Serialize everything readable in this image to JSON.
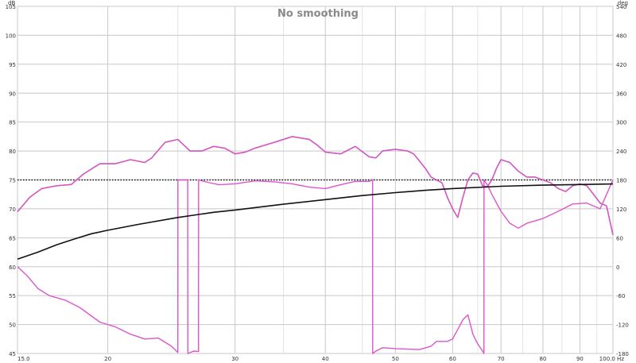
{
  "chart_data": {
    "type": "line",
    "title": "No smoothing",
    "left_unit": "dB",
    "right_unit": "deg",
    "x_scale": "log",
    "xlim": [
      15.0,
      100.0
    ],
    "ylim": [
      45,
      105
    ],
    "y2lim": [
      -180,
      540
    ],
    "grid": true,
    "legend": "none",
    "x_ticks": [
      15,
      20,
      30,
      40,
      50,
      60,
      70,
      80,
      90,
      100
    ],
    "x_tick_labels": [
      "15.0",
      "20",
      "30",
      "40",
      "50",
      "60",
      "70",
      "80",
      "90",
      "100.0 Hz"
    ],
    "y_ticks": [
      45,
      50,
      55,
      60,
      65,
      70,
      75,
      80,
      85,
      90,
      95,
      100,
      105
    ],
    "y_tick_labels": [
      "45",
      "50",
      "55",
      "60",
      "65",
      "70",
      "75",
      "80",
      "85",
      "90",
      "95",
      "100",
      "105"
    ],
    "y2_ticks": [
      -180,
      -120,
      -60,
      0,
      60,
      120,
      180,
      240,
      300,
      360,
      420,
      480,
      540
    ],
    "y2_tick_labels": [
      "-180",
      "-120",
      "-60",
      "0",
      "60",
      "120",
      "180",
      "240",
      "300",
      "360",
      "420",
      "480",
      "540"
    ],
    "series": [
      {
        "color": "#7a2c58",
        "points": [
          [
            15.0,
            69.5
          ],
          [
            15.6,
            72.0
          ],
          [
            16.2,
            73.5
          ],
          [
            17.0,
            74.0
          ],
          [
            17.8,
            74.2
          ],
          [
            18.5,
            76.0
          ],
          [
            19.5,
            77.8
          ],
          [
            20.5,
            77.8
          ],
          [
            21.5,
            78.5
          ],
          [
            22.5,
            78.0
          ],
          [
            23.0,
            78.8
          ],
          [
            24.0,
            81.5
          ],
          [
            25.0,
            82.0
          ],
          [
            26.0,
            80.0
          ],
          [
            27.0,
            80.0
          ],
          [
            28.0,
            80.8
          ],
          [
            29.0,
            80.5
          ],
          [
            30.0,
            79.5
          ],
          [
            31.0,
            79.8
          ],
          [
            32.0,
            80.5
          ],
          [
            34.0,
            81.5
          ],
          [
            36.0,
            82.5
          ],
          [
            38.0,
            82.0
          ],
          [
            39.0,
            81.0
          ],
          [
            40.0,
            79.8
          ],
          [
            42.0,
            79.5
          ],
          [
            44.0,
            80.8
          ],
          [
            46.0,
            79.0
          ],
          [
            47.0,
            78.8
          ],
          [
            48.0,
            80.0
          ],
          [
            50.0,
            80.3
          ],
          [
            52.0,
            80.0
          ],
          [
            53.0,
            79.5
          ],
          [
            55.0,
            77.0
          ],
          [
            56.0,
            75.5
          ],
          [
            58.0,
            74.5
          ],
          [
            59.0,
            72.0
          ],
          [
            60.0,
            70.0
          ],
          [
            61.0,
            68.5
          ],
          [
            62.0,
            72.0
          ],
          [
            63.0,
            75.0
          ],
          [
            64.0,
            76.2
          ],
          [
            65.0,
            76.0
          ],
          [
            66.0,
            74.0
          ],
          [
            67.0,
            73.8
          ],
          [
            68.0,
            75.0
          ],
          [
            69.0,
            77.0
          ],
          [
            70.0,
            78.5
          ],
          [
            72.0,
            78.0
          ],
          [
            74.0,
            76.5
          ],
          [
            76.0,
            75.5
          ],
          [
            78.0,
            75.5
          ],
          [
            80.0,
            75.0
          ],
          [
            82.0,
            74.5
          ],
          [
            84.0,
            73.5
          ],
          [
            86.0,
            73.0
          ],
          [
            88.0,
            74.0
          ],
          [
            90.0,
            74.3
          ],
          [
            92.0,
            74.0
          ],
          [
            94.0,
            72.5
          ],
          [
            96.0,
            71.0
          ],
          [
            98.0,
            70.5
          ],
          [
            100.0,
            65.5
          ]
        ]
      },
      {
        "color": "#dd55cc",
        "points": [
          [
            15.0,
            69.5
          ],
          [
            15.6,
            72.0
          ],
          [
            16.2,
            73.5
          ],
          [
            17.0,
            74.0
          ],
          [
            17.8,
            74.2
          ],
          [
            18.5,
            76.0
          ],
          [
            19.5,
            77.8
          ],
          [
            20.5,
            77.8
          ],
          [
            21.5,
            78.5
          ],
          [
            22.5,
            78.0
          ],
          [
            23.0,
            78.8
          ],
          [
            24.0,
            81.5
          ],
          [
            25.0,
            82.0
          ],
          [
            26.0,
            80.0
          ],
          [
            27.0,
            80.0
          ],
          [
            28.0,
            80.8
          ],
          [
            29.0,
            80.5
          ],
          [
            30.0,
            79.5
          ],
          [
            31.0,
            79.8
          ],
          [
            32.0,
            80.5
          ],
          [
            34.0,
            81.5
          ],
          [
            36.0,
            82.5
          ],
          [
            38.0,
            82.0
          ],
          [
            39.0,
            81.0
          ],
          [
            40.0,
            79.8
          ],
          [
            42.0,
            79.5
          ],
          [
            44.0,
            80.8
          ],
          [
            46.0,
            79.0
          ],
          [
            47.0,
            78.8
          ],
          [
            48.0,
            80.0
          ],
          [
            50.0,
            80.3
          ],
          [
            52.0,
            80.0
          ],
          [
            53.0,
            79.5
          ],
          [
            55.0,
            77.0
          ],
          [
            56.0,
            75.5
          ],
          [
            58.0,
            74.5
          ],
          [
            59.0,
            72.0
          ],
          [
            60.0,
            70.0
          ],
          [
            61.0,
            68.5
          ],
          [
            62.0,
            72.0
          ],
          [
            63.0,
            75.0
          ],
          [
            64.0,
            76.2
          ],
          [
            65.0,
            76.0
          ],
          [
            66.0,
            74.0
          ],
          [
            67.0,
            73.8
          ],
          [
            68.0,
            75.0
          ],
          [
            69.0,
            77.0
          ],
          [
            70.0,
            78.5
          ],
          [
            72.0,
            78.0
          ],
          [
            74.0,
            76.5
          ],
          [
            76.0,
            75.5
          ],
          [
            78.0,
            75.5
          ],
          [
            80.0,
            75.0
          ],
          [
            82.0,
            74.5
          ],
          [
            84.0,
            73.5
          ],
          [
            86.0,
            73.0
          ],
          [
            88.0,
            74.0
          ],
          [
            90.0,
            74.3
          ],
          [
            92.0,
            74.0
          ],
          [
            94.0,
            72.5
          ],
          [
            96.0,
            71.0
          ],
          [
            98.0,
            70.5
          ],
          [
            100.0,
            65.5
          ]
        ]
      },
      {
        "color": "#dd55cc",
        "axis": "right",
        "points": [
          [
            15.0,
            0
          ],
          [
            15.5,
            -20
          ],
          [
            16.0,
            -45
          ],
          [
            16.6,
            -60
          ],
          [
            17.5,
            -70
          ],
          [
            18.3,
            -85
          ],
          [
            19.5,
            -115
          ],
          [
            20.5,
            -125
          ],
          [
            21.5,
            -140
          ],
          [
            22.5,
            -150
          ],
          [
            23.5,
            -148
          ],
          [
            24.5,
            -165
          ],
          [
            25.0,
            -178
          ],
          [
            25.01,
            180
          ],
          [
            25.8,
            180
          ],
          [
            25.81,
            -180
          ],
          [
            26.3,
            -175
          ],
          [
            26.7,
            -176
          ],
          [
            26.71,
            180
          ],
          [
            27.5,
            175
          ],
          [
            28.5,
            170
          ],
          [
            30.0,
            172
          ],
          [
            32.0,
            178
          ],
          [
            34.0,
            176
          ],
          [
            36.0,
            172
          ],
          [
            38.0,
            165
          ],
          [
            40.0,
            162
          ],
          [
            42.0,
            170
          ],
          [
            44.0,
            177
          ],
          [
            46.0,
            177
          ],
          [
            46.5,
            180
          ],
          [
            46.51,
            -180
          ],
          [
            47.0,
            -175
          ],
          [
            48.0,
            -168
          ],
          [
            50.0,
            -170
          ],
          [
            54.0,
            -172
          ],
          [
            56.0,
            -165
          ],
          [
            57.0,
            -155
          ],
          [
            59.0,
            -155
          ],
          [
            60.0,
            -150
          ],
          [
            61.0,
            -130
          ],
          [
            62.0,
            -110
          ],
          [
            63.0,
            -100
          ],
          [
            64.0,
            -140
          ],
          [
            65.0,
            -160
          ],
          [
            66.0,
            -175
          ],
          [
            66.3,
            -180
          ],
          [
            66.31,
            180
          ],
          [
            67.0,
            170
          ],
          [
            68.0,
            150
          ],
          [
            70.0,
            115
          ],
          [
            72.0,
            90
          ],
          [
            74.0,
            80
          ],
          [
            76.0,
            90
          ],
          [
            80.0,
            100
          ],
          [
            84.0,
            115
          ],
          [
            88.0,
            130
          ],
          [
            92.0,
            132
          ],
          [
            96.0,
            120
          ],
          [
            100.0,
            180
          ]
        ]
      },
      {
        "color": "#111111",
        "points": [
          [
            15.0,
            61.3
          ],
          [
            16.0,
            62.5
          ],
          [
            17.0,
            63.8
          ],
          [
            18.0,
            64.8
          ],
          [
            19.0,
            65.7
          ],
          [
            20.0,
            66.3
          ],
          [
            22.0,
            67.3
          ],
          [
            25.0,
            68.5
          ],
          [
            28.0,
            69.4
          ],
          [
            30.0,
            69.8
          ],
          [
            35.0,
            70.8
          ],
          [
            40.0,
            71.6
          ],
          [
            45.0,
            72.3
          ],
          [
            50.0,
            72.8
          ],
          [
            55.0,
            73.2
          ],
          [
            60.0,
            73.5
          ],
          [
            70.0,
            73.9
          ],
          [
            80.0,
            74.1
          ],
          [
            90.0,
            74.2
          ],
          [
            100.0,
            74.3
          ]
        ]
      }
    ],
    "reference_line": {
      "y": 75.0,
      "style": "dotted",
      "color": "#111111"
    }
  }
}
